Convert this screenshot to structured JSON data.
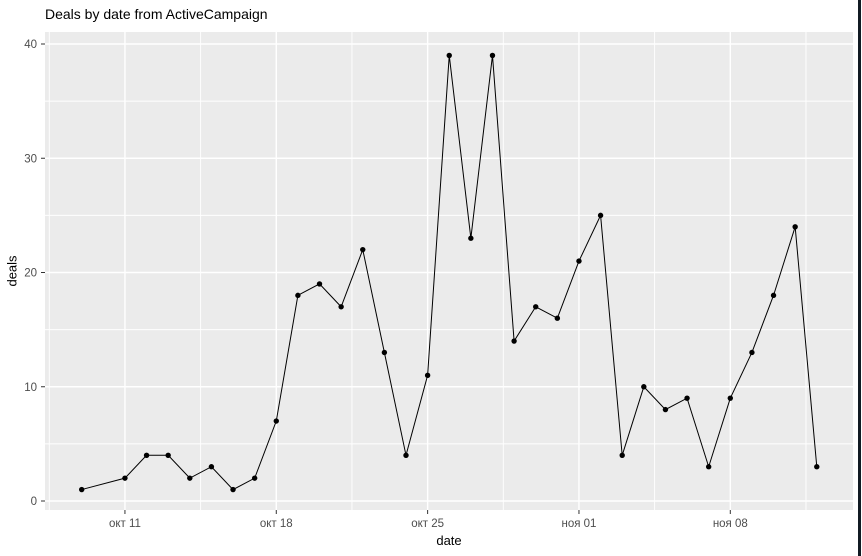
{
  "title": "Deals by date from ActiveCampaign",
  "chart_data": {
    "type": "line",
    "title": "Deals by date from ActiveCampaign",
    "xlabel": "date",
    "ylabel": "deals",
    "dates": [
      "окт 09",
      "окт 11",
      "окт 12",
      "окт 13",
      "окт 14",
      "окт 15",
      "окт 16",
      "окт 17",
      "окт 18",
      "окт 19",
      "окт 20",
      "окт 21",
      "окт 22",
      "окт 23",
      "окт 24",
      "окт 25",
      "окт 26",
      "окт 27",
      "окт 28",
      "окт 29",
      "окт 30",
      "окт 31",
      "ноя 01",
      "ноя 02",
      "ноя 03",
      "ноя 04",
      "ноя 05",
      "ноя 06",
      "ноя 07",
      "ноя 08",
      "ноя 09",
      "ноя 10",
      "ноя 11",
      "ноя 12"
    ],
    "x_days": [
      0,
      2,
      3,
      4,
      5,
      6,
      7,
      8,
      9,
      10,
      11,
      12,
      13,
      14,
      15,
      16,
      17,
      18,
      19,
      20,
      21,
      22,
      23,
      24,
      25,
      26,
      27,
      28,
      29,
      30,
      31,
      32,
      33,
      34
    ],
    "values": [
      1,
      2,
      4,
      4,
      2,
      3,
      1,
      2,
      7,
      18,
      19,
      17,
      22,
      13,
      4,
      11,
      39,
      23,
      39,
      14,
      17,
      16,
      21,
      25,
      4,
      10,
      8,
      9,
      3,
      9,
      13,
      18,
      24,
      3
    ],
    "x_ticks": [
      {
        "day": 2,
        "label": "окт 11"
      },
      {
        "day": 9,
        "label": "окт 18"
      },
      {
        "day": 16,
        "label": "окт 25"
      },
      {
        "day": 23,
        "label": "ноя 01"
      },
      {
        "day": 30,
        "label": "ноя 08"
      }
    ],
    "y_ticks": [
      0,
      10,
      20,
      30,
      40
    ],
    "ylim": [
      0,
      40
    ],
    "grid": true,
    "legend": "none",
    "panel_bg": "#EBEBEB",
    "grid_color": "#FFFFFF",
    "line_color": "#000000",
    "point_color": "#000000",
    "tick_color": "#333333",
    "tick_label_color": "#4D4D4D"
  },
  "window": {
    "right_border_color": "#111A23"
  }
}
